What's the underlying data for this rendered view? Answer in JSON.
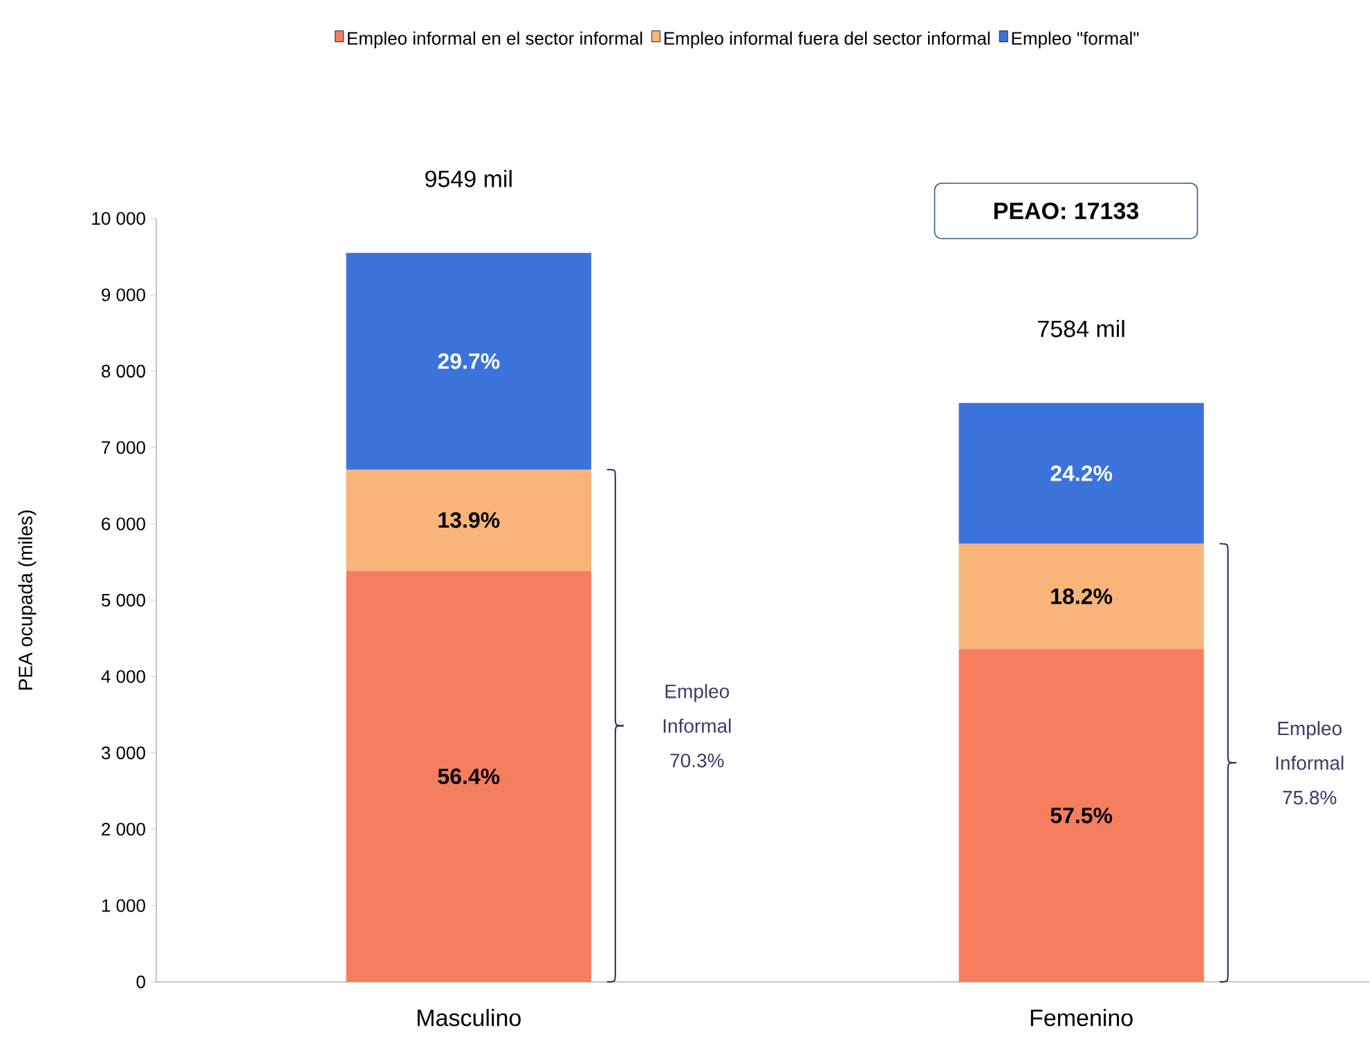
{
  "chart_data": {
    "type": "bar",
    "stacked": true,
    "ylabel": "PEA ocupada (miles)",
    "categories": [
      "Masculino",
      "Femenino"
    ],
    "series": [
      {
        "name": "Empleo informal en el sector informal",
        "color": "#f57e5e",
        "values": [
          5386,
          4361
        ]
      },
      {
        "name": "Empleo informal fuera del sector informal",
        "color": "#f9b47a",
        "values": [
          1327,
          1380
        ]
      },
      {
        "name": "Empleo \"formal\"",
        "color": "#3b73da",
        "values": [
          2836,
          1843
        ]
      }
    ],
    "totals": [
      "9549 mil",
      "7584 mil"
    ],
    "annotations": [
      "PEAO: 17133",
      "56.4%",
      "57.5%",
      "13.9%",
      "18.2%",
      "29.7%",
      "24.2%",
      "Empleo Informal 70.3%",
      "Empleo Informal 75.8%"
    ],
    "ylim": [
      0,
      10000
    ],
    "yticks": [
      0,
      {
        "value": 1000,
        "label": "1 000"
      },
      {
        "value": 2000,
        "label": "2 000"
      },
      {
        "value": 3000,
        "label": "3 000"
      },
      {
        "value": 4000,
        "label": "4 000"
      },
      {
        "value": 5000,
        "label": "5 000"
      },
      {
        "value": 6000,
        "label": "6 000"
      },
      {
        "value": 7000,
        "label": "7 000"
      },
      {
        "value": 8000,
        "label": "8 000"
      },
      {
        "value": 9000,
        "label": "9 000"
      },
      {
        "value": 10000,
        "label": "10 000"
      }
    ],
    "grid": false,
    "legend": "top"
  }
}
